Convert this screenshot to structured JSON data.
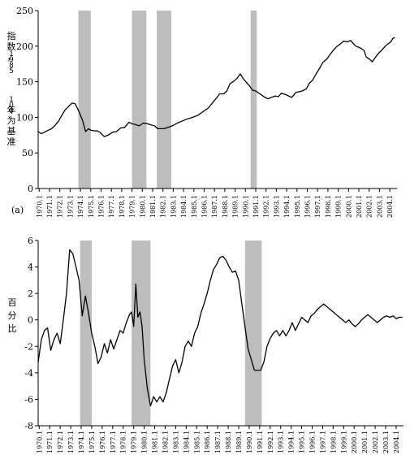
{
  "chart_data": [
    {
      "type": "line",
      "panel_label": "(a)",
      "ylabel": "指数，1985年为基准100",
      "ylim": [
        0,
        250
      ],
      "yticks": [
        0,
        50,
        100,
        150,
        200,
        250
      ],
      "xlim": [
        1970.0,
        2004.8
      ],
      "xtick_labels": [
        "1970.1",
        "1971.1",
        "1972.1",
        "1973.1",
        "1974.1",
        "1975.1",
        "1976.1",
        "1977.1",
        "1978.1",
        "1979.1",
        "1980.1",
        "1981.1",
        "1982.1",
        "1983.1",
        "1984.1",
        "1985.1",
        "1986.1",
        "1987.1",
        "1988.1",
        "1989.1",
        "1990.1",
        "1991.1",
        "1992.1",
        "1993.1",
        "1994.1",
        "1995.1",
        "1996.1",
        "1997.1",
        "1998.1",
        "1999.1",
        "2000.1",
        "2001.1",
        "2002.1",
        "2003.1",
        "2004.1"
      ],
      "recessions": [
        [
          1973.9,
          1975.1
        ],
        [
          1979.1,
          1980.5
        ],
        [
          1990.6,
          1991.2
        ],
        [
          1981.5,
          1982.9
        ]
      ],
      "series_x": [
        1970.0,
        1970.3,
        1970.6,
        1971.0,
        1971.3,
        1971.6,
        1972.0,
        1972.3,
        1972.6,
        1973.0,
        1973.3,
        1973.6,
        1973.9,
        1974.3,
        1974.6,
        1974.9,
        1975.1,
        1975.4,
        1975.7,
        1976.0,
        1976.4,
        1976.8,
        1977.2,
        1977.6,
        1978.0,
        1978.4,
        1978.8,
        1979.1,
        1979.4,
        1979.8,
        1980.2,
        1980.6,
        1981.0,
        1981.3,
        1981.6,
        1981.9,
        1982.2,
        1982.6,
        1983.0,
        1983.5,
        1984.0,
        1984.5,
        1985.0,
        1985.5,
        1986.0,
        1986.5,
        1987.0,
        1987.3,
        1987.6,
        1988.0,
        1988.3,
        1988.6,
        1989.0,
        1989.3,
        1989.6,
        1989.9,
        1990.2,
        1990.5,
        1990.8,
        1991.1,
        1991.4,
        1991.7,
        1992.0,
        1992.3,
        1992.6,
        1993.0,
        1993.3,
        1993.6,
        1994.0,
        1994.3,
        1994.6,
        1995.0,
        1995.3,
        1995.6,
        1996.0,
        1996.3,
        1996.6,
        1997.0,
        1997.3,
        1997.6,
        1998.0,
        1998.3,
        1998.6,
        1999.0,
        1999.3,
        1999.6,
        2000.0,
        2000.3,
        2000.6,
        2000.8,
        2001.0,
        2001.3,
        2001.6,
        2001.8,
        2002.0,
        2002.2,
        2002.4,
        2002.7,
        2003.0,
        2003.3,
        2003.6,
        2003.9,
        2004.2,
        2004.4,
        2004.6
      ],
      "series_y": [
        80,
        77,
        79,
        82,
        84,
        88,
        95,
        103,
        110,
        116,
        120,
        119,
        110,
        96,
        80,
        84,
        82,
        81,
        81,
        79,
        73,
        75,
        79,
        80,
        85,
        86,
        93,
        91,
        90,
        88,
        92,
        91,
        89,
        88,
        84,
        84,
        84,
        86,
        88,
        92,
        95,
        98,
        100,
        103,
        108,
        113,
        122,
        127,
        133,
        133,
        137,
        147,
        151,
        155,
        161,
        154,
        149,
        144,
        138,
        137,
        134,
        131,
        128,
        126,
        128,
        130,
        129,
        134,
        132,
        130,
        128,
        135,
        136,
        137,
        140,
        148,
        152,
        162,
        169,
        177,
        182,
        188,
        194,
        200,
        203,
        207,
        206,
        208,
        203,
        200,
        199,
        197,
        194,
        185,
        183,
        181,
        178,
        184,
        190,
        194,
        199,
        203,
        206,
        211,
        212
      ]
    },
    {
      "type": "line",
      "panel_label": "",
      "ylabel": "百分比",
      "ylim": [
        -8,
        6
      ],
      "yticks": [
        -8,
        -6,
        -4,
        -2,
        0,
        2,
        4,
        6
      ],
      "xlim": [
        1970.0,
        2004.8
      ],
      "xtick_labels": [
        "1970.1",
        "1971.1",
        "1972.1",
        "1973.1",
        "1974.1",
        "1975.1",
        "1976.1",
        "1977.1",
        "1978.1",
        "1979.1",
        "1980.1",
        "1981.1",
        "1982.1",
        "1983.1",
        "1984.1",
        "1985.1",
        "1986.1",
        "1987.1",
        "1988.1",
        "1989.1",
        "1990.1",
        "1991.1",
        "1992.1",
        "1993.1",
        "1994.1",
        "1995.1",
        "1996.1",
        "1997.1",
        "1998.1",
        "1999.1",
        "2000.1",
        "2001.1",
        "2002.1",
        "2003.1",
        "2004.1"
      ],
      "recessions": [
        [
          1974.0,
          1975.1
        ],
        [
          1978.9,
          1980.7
        ],
        [
          1989.7,
          1991.3
        ]
      ],
      "series_x": [
        1970.0,
        1970.3,
        1970.6,
        1970.9,
        1971.2,
        1971.5,
        1971.8,
        1972.1,
        1972.4,
        1972.7,
        1973.0,
        1973.3,
        1973.6,
        1973.9,
        1974.2,
        1974.5,
        1974.8,
        1975.1,
        1975.4,
        1975.7,
        1976.0,
        1976.3,
        1976.6,
        1976.9,
        1977.2,
        1977.5,
        1977.8,
        1978.1,
        1978.4,
        1978.7,
        1978.9,
        1979.1,
        1979.3,
        1979.5,
        1979.7,
        1979.9,
        1980.1,
        1980.4,
        1980.7,
        1981.0,
        1981.3,
        1981.6,
        1981.9,
        1982.2,
        1982.5,
        1982.8,
        1983.1,
        1983.4,
        1983.7,
        1984.0,
        1984.3,
        1984.6,
        1984.9,
        1985.2,
        1985.5,
        1985.8,
        1986.1,
        1986.4,
        1986.7,
        1987.0,
        1987.3,
        1987.6,
        1987.9,
        1988.2,
        1988.5,
        1988.8,
        1989.1,
        1989.4,
        1989.7,
        1990.0,
        1990.3,
        1990.6,
        1990.9,
        1991.2,
        1991.5,
        1991.8,
        1992.1,
        1992.4,
        1992.7,
        1993.0,
        1993.3,
        1993.6,
        1993.9,
        1994.2,
        1994.5,
        1994.8,
        1995.1,
        1995.4,
        1995.7,
        1996.0,
        1996.3,
        1996.6,
        1996.9,
        1997.2,
        1997.5,
        1997.8,
        1998.1,
        1998.4,
        1998.7,
        1999.0,
        1999.3,
        1999.6,
        1999.9,
        2000.2,
        2000.5,
        2000.8,
        2001.1,
        2001.4,
        2001.7,
        2002.0,
        2002.3,
        2002.6,
        2002.9,
        2003.2,
        2003.5,
        2003.8,
        2004.1,
        2004.4,
        2004.7
      ],
      "series_y": [
        -3.2,
        -1.5,
        -0.8,
        -0.6,
        -2.3,
        -1.5,
        -1.0,
        -1.8,
        0.0,
        2.0,
        5.3,
        5.0,
        4.0,
        3.0,
        0.3,
        1.8,
        0.5,
        -1.0,
        -2.0,
        -3.3,
        -2.8,
        -1.8,
        -2.5,
        -1.5,
        -2.2,
        -1.5,
        -0.8,
        -1.0,
        -0.2,
        0.4,
        0.6,
        -0.5,
        2.7,
        0.2,
        0.6,
        -0.5,
        -3.0,
        -5.2,
        -6.5,
        -5.8,
        -6.2,
        -5.8,
        -6.2,
        -5.5,
        -4.5,
        -3.5,
        -3.0,
        -4.0,
        -3.2,
        -2.0,
        -1.6,
        -2.0,
        -1.0,
        -0.5,
        0.5,
        1.2,
        2.0,
        3.0,
        3.8,
        4.2,
        4.7,
        4.8,
        4.5,
        4.0,
        3.6,
        3.7,
        3.0,
        1.2,
        -0.5,
        -2.2,
        -3.0,
        -3.8,
        -3.8,
        -3.8,
        -3.2,
        -2.0,
        -1.4,
        -1.0,
        -0.8,
        -1.2,
        -0.8,
        -1.2,
        -0.8,
        -0.2,
        -0.8,
        -0.3,
        0.2,
        0.0,
        -0.2,
        0.3,
        0.5,
        0.8,
        1.0,
        1.2,
        1.0,
        0.8,
        0.6,
        0.4,
        0.2,
        0.0,
        -0.2,
        0.0,
        -0.3,
        -0.5,
        -0.3,
        0.0,
        0.2,
        0.4,
        0.2,
        0.0,
        -0.2,
        0.0,
        0.2,
        0.3,
        0.2,
        0.3,
        0.1,
        0.2,
        0.2
      ]
    }
  ]
}
